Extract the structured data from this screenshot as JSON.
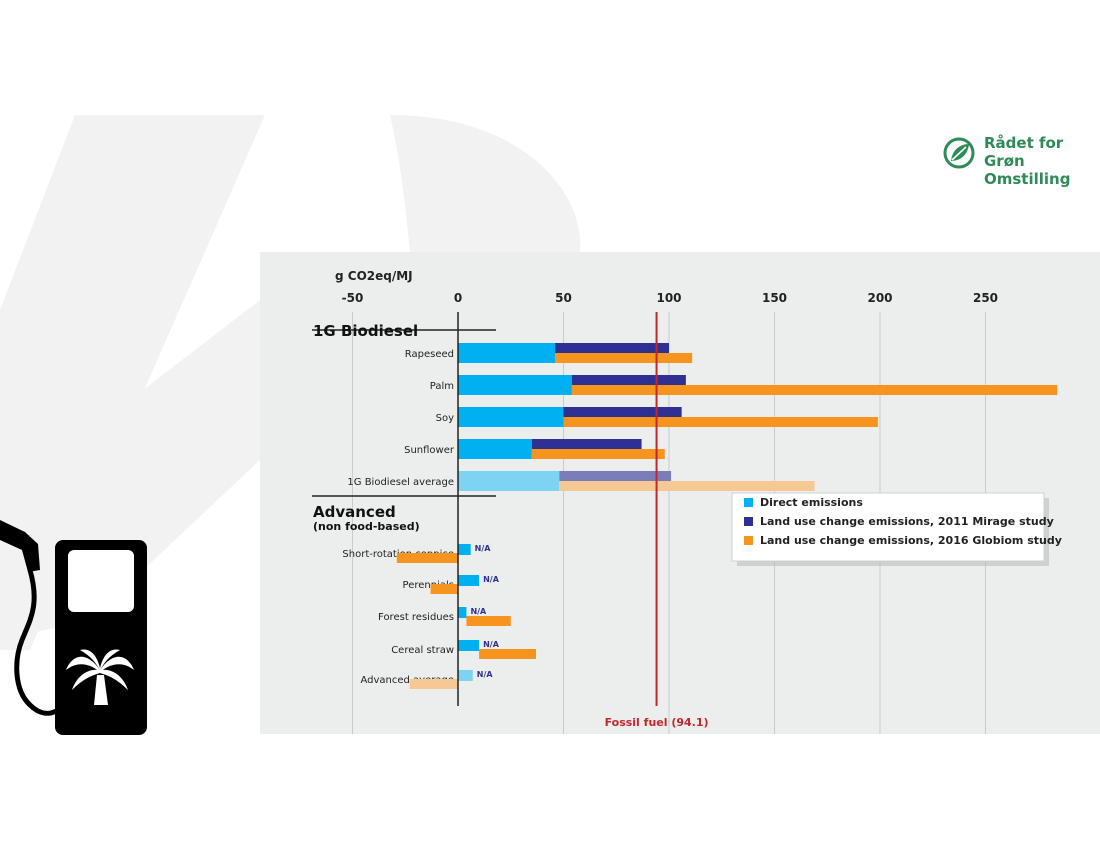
{
  "logo": {
    "lines": [
      "Rådet for",
      "Grøn",
      "Omstilling"
    ],
    "brand_color": "#2e8b57"
  },
  "icons": {
    "fuel_pump": "fuel-pump-icon",
    "palm_tree": "palm-tree-icon",
    "logo_mark": "leaf-logo-icon"
  },
  "chart_data": {
    "type": "bar",
    "orientation": "horizontal",
    "title": "",
    "xlabel": "g CO2eq/MJ",
    "xlim": [
      -50,
      290
    ],
    "xticks": [
      -50,
      0,
      50,
      100,
      150,
      200,
      250
    ],
    "grid": true,
    "groups": [
      {
        "name": "1G Biodiesel",
        "subtitle": "",
        "categories": [
          {
            "label": "Rapeseed",
            "direct": 46,
            "mirage": 100,
            "globiom": 111
          },
          {
            "label": "Palm",
            "direct": 54,
            "mirage": 108,
            "globiom": 284
          },
          {
            "label": "Soy",
            "direct": 50,
            "mirage": 106,
            "globiom": 199
          },
          {
            "label": "Sunflower",
            "direct": 35,
            "mirage": 87,
            "globiom": 98
          },
          {
            "label": "1G Biodiesel average",
            "direct": 48,
            "mirage": 101,
            "globiom": 169,
            "faded": true
          }
        ]
      },
      {
        "name": "Advanced",
        "subtitle": "(non food-based)",
        "categories": [
          {
            "label": "Short-rotation coppice",
            "direct": 6,
            "mirage": "N/A",
            "globiom": -29
          },
          {
            "label": "Perennials",
            "direct": 10,
            "mirage": "N/A",
            "globiom": -13
          },
          {
            "label": "Forest residues",
            "direct": 4,
            "mirage": "N/A",
            "globiom": 21
          },
          {
            "label": "Cereal straw",
            "direct": 10,
            "mirage": "N/A",
            "globiom": 27
          },
          {
            "label": "Advanced average",
            "direct": 7,
            "mirage": "N/A",
            "globiom": -23,
            "faded": true
          }
        ]
      }
    ],
    "series": [
      {
        "key": "direct",
        "name": "Direct emissions",
        "color": "#00b0f0",
        "faded_color": "#7dd3f2"
      },
      {
        "key": "mirage",
        "name": "Land use change emissions, 2011 Mirage study",
        "color": "#2e3192",
        "faded_color": "#7b7db8"
      },
      {
        "key": "globiom",
        "name": "Land use change emissions, 2016 Globiom study",
        "color": "#f7941d",
        "faded_color": "#f6c994"
      }
    ],
    "na_label": "N/A",
    "reference_line": {
      "value": 94.1,
      "label": "Fossil fuel (94.1)",
      "color": "#c1272d"
    },
    "legend_position": "right-middle"
  }
}
